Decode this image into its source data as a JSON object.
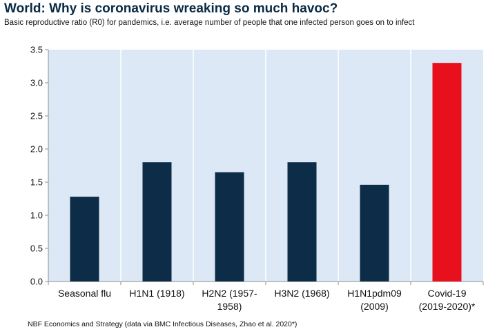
{
  "header": {
    "title": "World: Why is coronavirus wreaking so much havoc?",
    "subtitle": "Basic reproductive ratio (R0) for pandemics, i.e. average number of people that one infected person goes on to infect"
  },
  "footer": {
    "source": "NBF Economics and Strategy (data via BMC Infectious Diseases, Zhao et al. 2020*)"
  },
  "colors": {
    "plot_background": "#dce8f5",
    "gridline": "#ffffff",
    "bar_default": "#0c2c47",
    "bar_highlight": "#e8101c"
  },
  "chart_data": {
    "type": "bar",
    "title": "World: Why is coronavirus wreaking so much havoc?",
    "ylabel": "",
    "xlabel": "",
    "ylim": [
      0,
      3.5
    ],
    "yticks": [
      "0.0",
      "0.5",
      "1.0",
      "1.5",
      "2.0",
      "2.5",
      "3.0",
      "3.5"
    ],
    "grid": "vertical",
    "categories": [
      [
        "Seasonal flu"
      ],
      [
        "H1N1 (1918)"
      ],
      [
        "H2N2 (1957-",
        "1958)"
      ],
      [
        "H3N2 (1968)"
      ],
      [
        "H1N1pdm09",
        "(2009)"
      ],
      [
        "Covid-19",
        "(2019-2020)*"
      ]
    ],
    "values": [
      1.28,
      1.8,
      1.65,
      1.8,
      1.46,
      3.3
    ],
    "highlight_index": 5
  }
}
